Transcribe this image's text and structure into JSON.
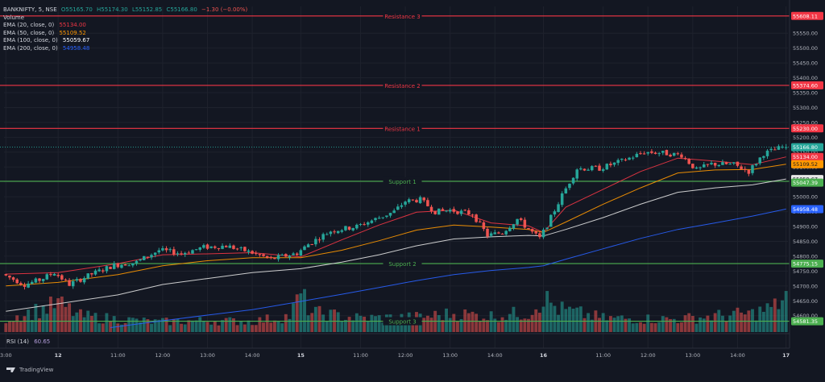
{
  "header": {
    "symbol": "BANKNIFTY, 5, NSE",
    "open": "O55165.70",
    "high": "H55174.30",
    "low": "L55152.85",
    "close": "C55166.80",
    "change": "−1.30 (−0.00%)"
  },
  "indicators": [
    {
      "label": "Volume",
      "value": "",
      "color": "#d1d4dc"
    },
    {
      "label": "EMA (20, close, 0)",
      "value": "55134.00",
      "color": "#f23645"
    },
    {
      "label": "EMA (50, close, 0)",
      "value": "55109.52",
      "color": "#ff9800"
    },
    {
      "label": "EMA (100, close, 0)",
      "value": "55059.67",
      "color": "#ffffff"
    },
    {
      "label": "EMA (200, close, 0)",
      "value": "54958.48",
      "color": "#2962ff"
    }
  ],
  "rsi": {
    "label": "RSI (14)",
    "value": "60.65"
  },
  "branding": {
    "logo_text": "TradingView"
  },
  "colors": {
    "background": "#131722",
    "up": "#26a69a",
    "down": "#ef5350",
    "resistance": "#f23645",
    "support": "#4caf50",
    "grid": "#1e222d",
    "axis_text": "#b2b5be"
  },
  "chart_data": {
    "type": "candlestick",
    "symbol": "BANKNIFTY",
    "interval": "5",
    "exchange": "NSE",
    "ylim": [
      54545,
      55640
    ],
    "y_ticks": [
      54600,
      54650,
      54700,
      54750,
      54800,
      54850,
      54900,
      54950,
      55000,
      55050,
      55100,
      55150,
      55200,
      55250,
      55300,
      55350,
      55400,
      55450,
      55500,
      55550
    ],
    "x_tick_labels": [
      {
        "label": "3:00",
        "bar": 0
      },
      {
        "label": "12",
        "bar": 14
      },
      {
        "label": "11:00",
        "bar": 30
      },
      {
        "label": "12:00",
        "bar": 42
      },
      {
        "label": "13:00",
        "bar": 54
      },
      {
        "label": "14:00",
        "bar": 66
      },
      {
        "label": "15",
        "bar": 79
      },
      {
        "label": "11:00",
        "bar": 95
      },
      {
        "label": "12:00",
        "bar": 107
      },
      {
        "label": "13:00",
        "bar": 119
      },
      {
        "label": "14:00",
        "bar": 131
      },
      {
        "label": "16",
        "bar": 144
      },
      {
        "label": "11:00",
        "bar": 160
      },
      {
        "label": "12:00",
        "bar": 172
      },
      {
        "label": "13:00",
        "bar": 184
      },
      {
        "label": "14:00",
        "bar": 196
      },
      {
        "label": "17",
        "bar": 209
      }
    ],
    "levels": [
      {
        "name": "Resistance 3",
        "value": 55608.11,
        "label": "55608.11",
        "kind": "resistance"
      },
      {
        "name": "Resistance 2",
        "value": 55374.6,
        "label": "55374.60",
        "kind": "resistance"
      },
      {
        "name": "Resistance 1",
        "value": 55230.0,
        "label": "55230.00",
        "kind": "resistance"
      },
      {
        "name": "Support 1",
        "value": 55052.0,
        "label": "",
        "kind": "support"
      },
      {
        "name": "Support 2",
        "value": 54775.15,
        "label": "54775.15",
        "kind": "support"
      },
      {
        "name": "Support 3",
        "value": 54581.35,
        "label": "54581.35",
        "kind": "support"
      }
    ],
    "price_labels": [
      {
        "label": "55166.80",
        "value": 55166.8,
        "color": "#26a69a"
      },
      {
        "label": "55134.00",
        "value": 55134.0,
        "color": "#f23645"
      },
      {
        "label": "55109.52",
        "value": 55109.52,
        "color": "#ff9800"
      },
      {
        "label": "55059.67",
        "value": 55059.67,
        "color": "#e8e8e8"
      },
      {
        "label": "55047.39",
        "value": 55047.39,
        "color": "#4caf50"
      },
      {
        "label": "54958.48",
        "value": 54958.48,
        "color": "#2962ff"
      }
    ],
    "last_price": 55166.8,
    "ema_series": [
      {
        "name": "EMA 20",
        "color": "#f23645",
        "points": [
          [
            0,
            54740
          ],
          [
            14,
            54745
          ],
          [
            30,
            54775
          ],
          [
            42,
            54805
          ],
          [
            54,
            54808
          ],
          [
            66,
            54812
          ],
          [
            79,
            54798
          ],
          [
            90,
            54855
          ],
          [
            100,
            54905
          ],
          [
            110,
            54948
          ],
          [
            120,
            54955
          ],
          [
            130,
            54912
          ],
          [
            140,
            54902
          ],
          [
            144,
            54880
          ],
          [
            150,
            54965
          ],
          [
            160,
            55025
          ],
          [
            170,
            55085
          ],
          [
            180,
            55130
          ],
          [
            190,
            55120
          ],
          [
            200,
            55108
          ],
          [
            209,
            55134
          ]
        ]
      },
      {
        "name": "EMA 50",
        "color": "#ff9800",
        "points": [
          [
            0,
            54700
          ],
          [
            14,
            54712
          ],
          [
            30,
            54738
          ],
          [
            42,
            54768
          ],
          [
            54,
            54785
          ],
          [
            66,
            54795
          ],
          [
            79,
            54795
          ],
          [
            90,
            54820
          ],
          [
            100,
            54852
          ],
          [
            110,
            54888
          ],
          [
            120,
            54905
          ],
          [
            130,
            54898
          ],
          [
            140,
            54890
          ],
          [
            144,
            54880
          ],
          [
            150,
            54915
          ],
          [
            160,
            54975
          ],
          [
            170,
            55030
          ],
          [
            180,
            55080
          ],
          [
            190,
            55090
          ],
          [
            200,
            55092
          ],
          [
            209,
            55109.52
          ]
        ]
      },
      {
        "name": "EMA 100",
        "color": "#e0e0e0",
        "points": [
          [
            0,
            54615
          ],
          [
            14,
            54640
          ],
          [
            30,
            54670
          ],
          [
            42,
            54705
          ],
          [
            54,
            54725
          ],
          [
            66,
            54745
          ],
          [
            79,
            54758
          ],
          [
            90,
            54780
          ],
          [
            100,
            54805
          ],
          [
            110,
            54835
          ],
          [
            120,
            54858
          ],
          [
            130,
            54865
          ],
          [
            140,
            54870
          ],
          [
            144,
            54868
          ],
          [
            150,
            54890
          ],
          [
            160,
            54930
          ],
          [
            170,
            54975
          ],
          [
            180,
            55015
          ],
          [
            190,
            55030
          ],
          [
            200,
            55040
          ],
          [
            209,
            55059.67
          ]
        ]
      },
      {
        "name": "EMA 200",
        "color": "#2962ff",
        "points": [
          [
            28,
            54560
          ],
          [
            40,
            54580
          ],
          [
            54,
            54602
          ],
          [
            66,
            54620
          ],
          [
            79,
            54648
          ],
          [
            90,
            54672
          ],
          [
            100,
            54695
          ],
          [
            110,
            54718
          ],
          [
            120,
            54738
          ],
          [
            130,
            54752
          ],
          [
            140,
            54762
          ],
          [
            144,
            54768
          ],
          [
            150,
            54790
          ],
          [
            160,
            54825
          ],
          [
            170,
            54860
          ],
          [
            180,
            54890
          ],
          [
            190,
            54912
          ],
          [
            200,
            54935
          ],
          [
            209,
            54958.48
          ]
        ]
      }
    ],
    "price_path": [
      [
        0,
        54740
      ],
      [
        6,
        54705
      ],
      [
        10,
        54720
      ],
      [
        14,
        54745
      ],
      [
        18,
        54705
      ],
      [
        24,
        54740
      ],
      [
        30,
        54770
      ],
      [
        36,
        54780
      ],
      [
        42,
        54820
      ],
      [
        48,
        54810
      ],
      [
        54,
        54830
      ],
      [
        60,
        54835
      ],
      [
        66,
        54815
      ],
      [
        72,
        54790
      ],
      [
        79,
        54810
      ],
      [
        82,
        54840
      ],
      [
        88,
        54885
      ],
      [
        95,
        54900
      ],
      [
        100,
        54925
      ],
      [
        105,
        54950
      ],
      [
        108,
        54985
      ],
      [
        112,
        54990
      ],
      [
        116,
        54950
      ],
      [
        120,
        54955
      ],
      [
        126,
        54942
      ],
      [
        130,
        54870
      ],
      [
        134,
        54880
      ],
      [
        138,
        54925
      ],
      [
        142,
        54880
      ],
      [
        144,
        54860
      ],
      [
        146,
        54905
      ],
      [
        150,
        55005
      ],
      [
        154,
        55095
      ],
      [
        160,
        55095
      ],
      [
        166,
        55120
      ],
      [
        172,
        55150
      ],
      [
        176,
        55148
      ],
      [
        182,
        55140
      ],
      [
        186,
        55090
      ],
      [
        190,
        55110
      ],
      [
        196,
        55108
      ],
      [
        200,
        55085
      ],
      [
        204,
        55145
      ],
      [
        209,
        55166.8
      ]
    ],
    "volume_path": [
      [
        0,
        0.3
      ],
      [
        6,
        0.42
      ],
      [
        12,
        0.55
      ],
      [
        14,
        0.62
      ],
      [
        20,
        0.35
      ],
      [
        30,
        0.28
      ],
      [
        40,
        0.22
      ],
      [
        54,
        0.25
      ],
      [
        66,
        0.23
      ],
      [
        76,
        0.35
      ],
      [
        79,
        0.8
      ],
      [
        82,
        0.42
      ],
      [
        95,
        0.3
      ],
      [
        110,
        0.32
      ],
      [
        120,
        0.4
      ],
      [
        130,
        0.35
      ],
      [
        140,
        0.42
      ],
      [
        144,
        0.75
      ],
      [
        148,
        0.5
      ],
      [
        160,
        0.3
      ],
      [
        180,
        0.28
      ],
      [
        190,
        0.35
      ],
      [
        200,
        0.4
      ],
      [
        206,
        0.55
      ],
      [
        209,
        0.8
      ]
    ]
  }
}
